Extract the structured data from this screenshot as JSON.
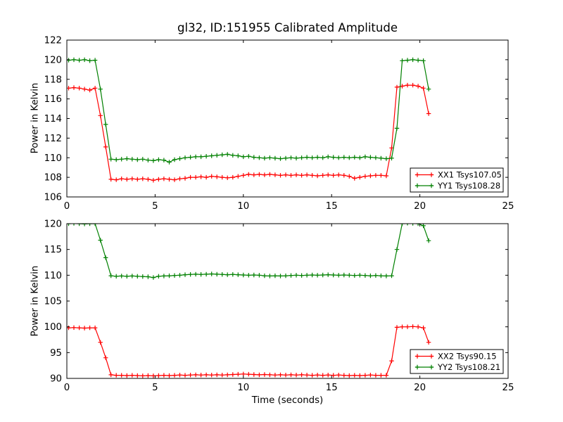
{
  "figure": {
    "title": "gl32, ID:151955 Calibrated Amplitude",
    "background": "#ffffff",
    "axis_color": "#000000"
  },
  "chart_data": [
    {
      "type": "line",
      "title": "gl32, ID:151955 Calibrated Amplitude",
      "xlabel": "",
      "ylabel": "Power in Kelvin",
      "xlim": [
        0,
        25
      ],
      "ylim": [
        106,
        122
      ],
      "xticks": [
        0,
        5,
        10,
        15,
        20,
        25
      ],
      "yticks": [
        106,
        108,
        110,
        112,
        114,
        116,
        118,
        120,
        122
      ],
      "grid": false,
      "legend_position": "lower right",
      "marker": "+",
      "x": [
        0.1,
        0.4,
        0.7,
        1.0,
        1.3,
        1.6,
        1.9,
        2.2,
        2.5,
        2.8,
        3.1,
        3.4,
        3.7,
        4.0,
        4.3,
        4.6,
        4.9,
        5.2,
        5.5,
        5.8,
        6.1,
        6.4,
        6.7,
        7.0,
        7.3,
        7.6,
        7.9,
        8.2,
        8.5,
        8.8,
        9.1,
        9.4,
        9.7,
        10.0,
        10.3,
        10.6,
        10.9,
        11.2,
        11.5,
        11.8,
        12.1,
        12.4,
        12.7,
        13.0,
        13.3,
        13.6,
        13.9,
        14.2,
        14.5,
        14.8,
        15.1,
        15.4,
        15.7,
        16.0,
        16.3,
        16.6,
        16.9,
        17.2,
        17.5,
        17.8,
        18.1,
        18.4,
        18.7,
        19.0,
        19.3,
        19.6,
        19.9,
        20.2,
        20.5
      ],
      "series": [
        {
          "name": "XX1 Tsys107.05",
          "color": "#ff0000",
          "values": [
            117.1,
            117.15,
            117.1,
            117.0,
            116.9,
            117.1,
            114.3,
            111.1,
            107.8,
            107.75,
            107.85,
            107.8,
            107.85,
            107.8,
            107.85,
            107.8,
            107.7,
            107.8,
            107.85,
            107.8,
            107.75,
            107.85,
            107.9,
            108.0,
            108.0,
            108.05,
            108.0,
            108.1,
            108.05,
            108.0,
            107.95,
            108.0,
            108.1,
            108.2,
            108.3,
            108.25,
            108.3,
            108.25,
            108.3,
            108.25,
            108.2,
            108.25,
            108.2,
            108.25,
            108.2,
            108.25,
            108.2,
            108.15,
            108.2,
            108.25,
            108.2,
            108.25,
            108.2,
            108.1,
            107.9,
            108.0,
            108.1,
            108.15,
            108.2,
            108.2,
            108.15,
            111.0,
            117.2,
            117.3,
            117.4,
            117.4,
            117.3,
            117.1,
            114.5
          ]
        },
        {
          "name": "YY1 Tsys108.28",
          "color": "#008000",
          "values": [
            119.95,
            120.0,
            119.95,
            120.0,
            119.9,
            119.95,
            117.0,
            113.4,
            109.85,
            109.8,
            109.85,
            109.9,
            109.85,
            109.8,
            109.85,
            109.75,
            109.7,
            109.8,
            109.75,
            109.55,
            109.8,
            109.9,
            110.0,
            110.05,
            110.1,
            110.1,
            110.15,
            110.2,
            110.25,
            110.3,
            110.35,
            110.25,
            110.2,
            110.1,
            110.15,
            110.05,
            110.0,
            109.95,
            110.0,
            109.95,
            109.9,
            109.95,
            110.0,
            109.95,
            110.0,
            110.05,
            110.0,
            110.05,
            110.0,
            110.1,
            110.05,
            110.0,
            110.05,
            110.0,
            110.05,
            110.0,
            110.1,
            110.05,
            110.0,
            109.95,
            109.9,
            109.95,
            113.0,
            119.9,
            119.95,
            120.0,
            119.95,
            119.9,
            117.0
          ]
        }
      ]
    },
    {
      "type": "line",
      "title": "",
      "xlabel": "Time (seconds)",
      "ylabel": "Power in Kelvin",
      "xlim": [
        0,
        25
      ],
      "ylim": [
        90,
        120
      ],
      "xticks": [
        0,
        5,
        10,
        15,
        20,
        25
      ],
      "yticks": [
        90,
        95,
        100,
        105,
        110,
        115,
        120
      ],
      "grid": false,
      "legend_position": "lower right",
      "marker": "+",
      "x": [
        0.1,
        0.4,
        0.7,
        1.0,
        1.3,
        1.6,
        1.9,
        2.2,
        2.5,
        2.8,
        3.1,
        3.4,
        3.7,
        4.0,
        4.3,
        4.6,
        4.9,
        5.2,
        5.5,
        5.8,
        6.1,
        6.4,
        6.7,
        7.0,
        7.3,
        7.6,
        7.9,
        8.2,
        8.5,
        8.8,
        9.1,
        9.4,
        9.7,
        10.0,
        10.3,
        10.6,
        10.9,
        11.2,
        11.5,
        11.8,
        12.1,
        12.4,
        12.7,
        13.0,
        13.3,
        13.6,
        13.9,
        14.2,
        14.5,
        14.8,
        15.1,
        15.4,
        15.7,
        16.0,
        16.3,
        16.6,
        16.9,
        17.2,
        17.5,
        17.8,
        18.1,
        18.4,
        18.7,
        19.0,
        19.3,
        19.6,
        19.9,
        20.2,
        20.5
      ],
      "series": [
        {
          "name": "XX2 Tsys90.15",
          "color": "#ff0000",
          "values": [
            99.8,
            99.85,
            99.8,
            99.75,
            99.8,
            99.8,
            97.0,
            94.0,
            90.7,
            90.6,
            90.6,
            90.55,
            90.6,
            90.55,
            90.5,
            90.55,
            90.5,
            90.55,
            90.6,
            90.55,
            90.6,
            90.65,
            90.6,
            90.65,
            90.7,
            90.65,
            90.7,
            90.65,
            90.7,
            90.65,
            90.7,
            90.75,
            90.8,
            90.85,
            90.8,
            90.75,
            90.7,
            90.75,
            90.7,
            90.65,
            90.7,
            90.65,
            90.7,
            90.65,
            90.7,
            90.65,
            90.6,
            90.65,
            90.6,
            90.65,
            90.6,
            90.65,
            90.6,
            90.55,
            90.6,
            90.55,
            90.6,
            90.65,
            90.6,
            90.6,
            90.6,
            93.4,
            99.9,
            100.0,
            100.0,
            100.05,
            100.0,
            99.8,
            97.0
          ]
        },
        {
          "name": "YY2 Tsys108.21",
          "color": "#008000",
          "values": [
            120.0,
            120.05,
            120.0,
            119.95,
            120.0,
            120.0,
            116.8,
            113.4,
            109.9,
            109.8,
            109.85,
            109.8,
            109.85,
            109.8,
            109.75,
            109.7,
            109.55,
            109.8,
            109.85,
            109.9,
            109.95,
            110.0,
            110.1,
            110.15,
            110.2,
            110.15,
            110.2,
            110.25,
            110.2,
            110.15,
            110.1,
            110.15,
            110.1,
            110.05,
            110.0,
            110.05,
            110.0,
            109.9,
            109.85,
            109.9,
            109.85,
            109.9,
            109.95,
            110.0,
            109.95,
            110.0,
            110.05,
            110.0,
            110.05,
            110.1,
            110.05,
            110.0,
            110.05,
            110.0,
            109.95,
            110.0,
            109.95,
            109.9,
            109.95,
            109.9,
            109.85,
            109.9,
            115.0,
            120.0,
            120.1,
            120.05,
            120.0,
            119.6,
            116.7
          ]
        }
      ]
    }
  ]
}
